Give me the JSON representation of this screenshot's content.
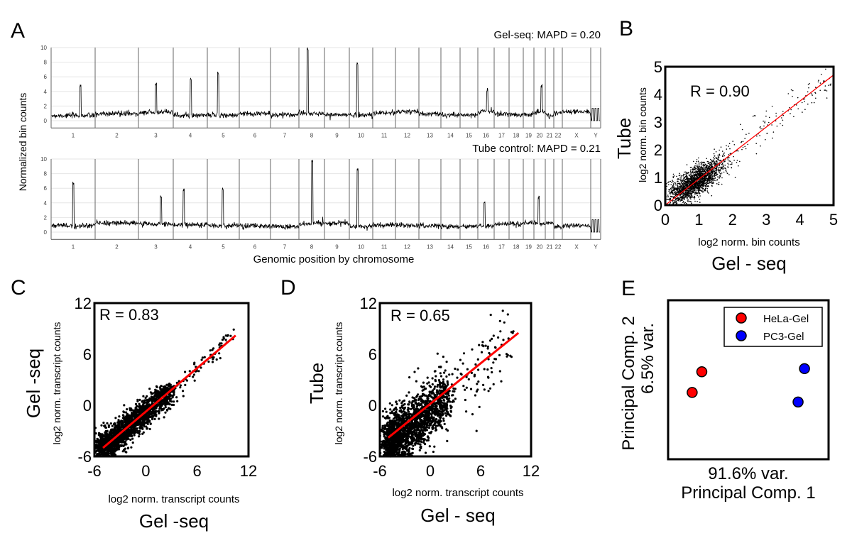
{
  "panel_labels": [
    "A",
    "B",
    "C",
    "D",
    "E"
  ],
  "chart_data": [
    {
      "panel": "A",
      "type": "line",
      "ylabel": "Normalized bin counts",
      "xlabel": "Genomic position by chromosome",
      "ylim": [
        -1,
        10
      ],
      "yticks": [
        0,
        2,
        4,
        6,
        8,
        10
      ],
      "grid": true,
      "categories": [
        "1",
        "2",
        "3",
        "4",
        "5",
        "6",
        "7",
        "8",
        "9",
        "10",
        "11",
        "12",
        "13",
        "14",
        "15",
        "16",
        "17",
        "18",
        "19",
        "20",
        "21",
        "22",
        "X",
        "Y"
      ],
      "series": [
        {
          "name": "Gel-seq: MAPD = 0.20",
          "baseline": 1,
          "peaks": [
            {
              "chr": "1",
              "value": 5
            },
            {
              "chr": "3",
              "value": 5.2
            },
            {
              "chr": "4",
              "value": 6
            },
            {
              "chr": "5",
              "value": 6.7
            },
            {
              "chr": "8",
              "value": 10
            },
            {
              "chr": "10",
              "value": 8
            },
            {
              "chr": "16",
              "value": 4.5
            },
            {
              "chr": "20",
              "value": 5
            }
          ]
        },
        {
          "name": "Tube control: MAPD = 0.21",
          "baseline": 1,
          "peaks": [
            {
              "chr": "1",
              "value": 7
            },
            {
              "chr": "3",
              "value": 5.2
            },
            {
              "chr": "4",
              "value": 6
            },
            {
              "chr": "5",
              "value": 6.2
            },
            {
              "chr": "8",
              "value": 10
            },
            {
              "chr": "10",
              "value": 9
            },
            {
              "chr": "16",
              "value": 4.5
            },
            {
              "chr": "20",
              "value": 5
            }
          ]
        }
      ]
    },
    {
      "panel": "B",
      "type": "scatter",
      "annotation": "R = 0.90",
      "r": 0.9,
      "ylabel_top": "Tube",
      "ylabel": "log2 norm. bin counts",
      "xlabel": "log2 norm. bin counts",
      "xlabel_bottom": "Gel - seq",
      "xlim": [
        0,
        5
      ],
      "ylim": [
        0,
        5
      ],
      "xticks": [
        0,
        1,
        2,
        3,
        4,
        5
      ],
      "yticks": [
        0,
        1,
        2,
        3,
        4,
        5
      ],
      "fit_line": {
        "x": [
          0,
          5
        ],
        "y": [
          0,
          4.7
        ]
      },
      "point_color": "#000000",
      "line_color": "#ff0000"
    },
    {
      "panel": "C",
      "type": "scatter",
      "annotation": "R = 0.83",
      "r": 0.83,
      "ylabel_top": "Gel -seq",
      "ylabel": "log2 norm. transcript counts",
      "xlabel": "log2 norm. transcript counts",
      "xlabel_bottom": "Gel -seq",
      "xlim": [
        -6,
        12
      ],
      "ylim": [
        -6,
        12
      ],
      "xticks": [
        -6,
        0,
        6,
        12
      ],
      "yticks": [
        -6,
        0,
        6,
        12
      ],
      "fit_line": {
        "x": [
          -5,
          10.5
        ],
        "y": [
          -5,
          8.2
        ]
      },
      "point_color": "#000000",
      "line_color": "#ff0000"
    },
    {
      "panel": "D",
      "type": "scatter",
      "annotation": "R = 0.65",
      "r": 0.65,
      "ylabel_top": "Tube",
      "ylabel": "log2 norm. transcript counts",
      "xlabel": "log2 norm. transcript counts",
      "xlabel_bottom": "Gel - seq",
      "xlim": [
        -6,
        12
      ],
      "ylim": [
        -6,
        12
      ],
      "xticks": [
        -6,
        0,
        6,
        12
      ],
      "yticks": [
        -6,
        0,
        6,
        12
      ],
      "fit_line": {
        "x": [
          -5,
          10.5
        ],
        "y": [
          -3.8,
          8.5
        ]
      },
      "point_color": "#000000",
      "line_color": "#ff0000"
    },
    {
      "panel": "E",
      "type": "scatter",
      "ylabel_top": "Principal Comp. 2",
      "ylabel": "6.5% var.",
      "xlabel": "91.6% var.",
      "xlabel_bottom": "Principal Comp. 1",
      "legend": "top-right",
      "series": [
        {
          "name": "HeLa-Gel",
          "color": "#ff0000",
          "points": [
            [
              0.21,
              0.55
            ],
            [
              0.15,
              0.42
            ]
          ]
        },
        {
          "name": "PC3-Gel",
          "color": "#0000ff",
          "points": [
            [
              0.85,
              0.57
            ],
            [
              0.81,
              0.36
            ]
          ]
        }
      ]
    }
  ]
}
